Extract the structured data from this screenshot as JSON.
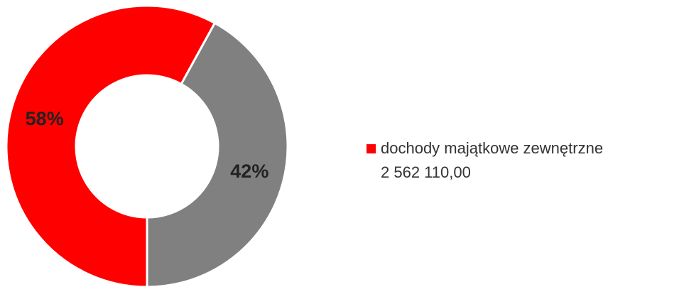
{
  "chart_data": {
    "type": "donut",
    "categories": [
      "dochody majątkowe zewnętrzne",
      null
    ],
    "category_amounts": [
      {
        "value": 2562110,
        "label": "2 562 110,00"
      },
      null
    ],
    "values": [
      58,
      42
    ],
    "value_labels": [
      "58%",
      "42%"
    ],
    "colors": [
      "#ff0000",
      "#808080"
    ],
    "legend": "right"
  }
}
